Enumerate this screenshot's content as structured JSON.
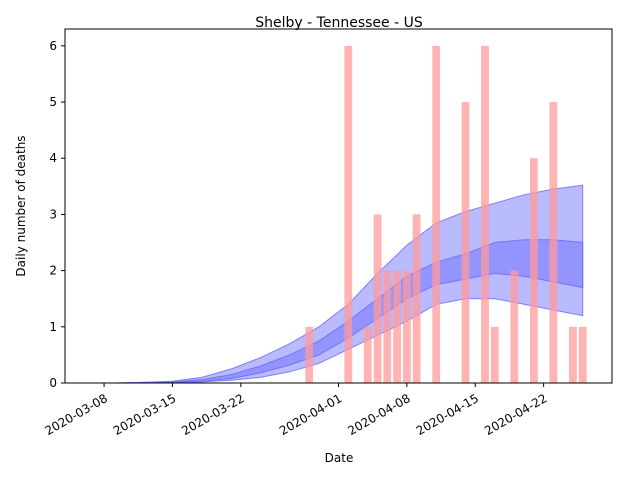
{
  "chart_data": {
    "type": "bar",
    "title": "Shelby - Tennessee - US",
    "xlabel": "Date",
    "ylabel": "Daily number of deaths",
    "xlim": [
      "2020-03-04",
      "2020-04-29"
    ],
    "ylim": [
      0,
      6.3
    ],
    "x_ticks": [
      "2020-03-08",
      "2020-03-15",
      "2020-03-22",
      "2020-04-01",
      "2020-04-08",
      "2020-04-15",
      "2020-04-22"
    ],
    "y_ticks": [
      0,
      1,
      2,
      3,
      4,
      5,
      6
    ],
    "grid": false,
    "bar_color": "#ff9999",
    "band_color": "#6666ff",
    "bars": [
      {
        "date": "2020-03-29",
        "value": 1
      },
      {
        "date": "2020-04-02",
        "value": 6
      },
      {
        "date": "2020-04-04",
        "value": 1
      },
      {
        "date": "2020-04-05",
        "value": 3
      },
      {
        "date": "2020-04-06",
        "value": 2
      },
      {
        "date": "2020-04-07",
        "value": 2
      },
      {
        "date": "2020-04-08",
        "value": 2
      },
      {
        "date": "2020-04-09",
        "value": 3
      },
      {
        "date": "2020-04-11",
        "value": 6
      },
      {
        "date": "2020-04-14",
        "value": 5
      },
      {
        "date": "2020-04-16",
        "value": 6
      },
      {
        "date": "2020-04-17",
        "value": 1
      },
      {
        "date": "2020-04-19",
        "value": 2
      },
      {
        "date": "2020-04-21",
        "value": 4
      },
      {
        "date": "2020-04-23",
        "value": 5
      },
      {
        "date": "2020-04-25",
        "value": 1
      },
      {
        "date": "2020-04-26",
        "value": 1
      }
    ],
    "bands": {
      "dates": [
        "2020-03-09",
        "2020-03-12",
        "2020-03-15",
        "2020-03-18",
        "2020-03-21",
        "2020-03-24",
        "2020-03-27",
        "2020-03-30",
        "2020-04-02",
        "2020-04-05",
        "2020-04-08",
        "2020-04-11",
        "2020-04-14",
        "2020-04-17",
        "2020-04-20",
        "2020-04-23",
        "2020-04-26"
      ],
      "outer_upper": [
        0,
        0.01,
        0.03,
        0.1,
        0.25,
        0.45,
        0.7,
        1.0,
        1.4,
        1.95,
        2.45,
        2.85,
        3.05,
        3.2,
        3.35,
        3.45,
        3.52
      ],
      "outer_lower": [
        0,
        0,
        0.01,
        0.02,
        0.05,
        0.1,
        0.2,
        0.35,
        0.6,
        0.85,
        1.1,
        1.4,
        1.5,
        1.5,
        1.4,
        1.3,
        1.2
      ],
      "inner_upper": [
        0,
        0.01,
        0.02,
        0.06,
        0.15,
        0.3,
        0.5,
        0.75,
        1.1,
        1.5,
        1.9,
        2.15,
        2.3,
        2.5,
        2.55,
        2.55,
        2.5
      ],
      "inner_lower": [
        0,
        0,
        0.01,
        0.03,
        0.08,
        0.18,
        0.32,
        0.5,
        0.8,
        1.15,
        1.5,
        1.75,
        1.85,
        1.95,
        1.9,
        1.8,
        1.7
      ]
    }
  }
}
